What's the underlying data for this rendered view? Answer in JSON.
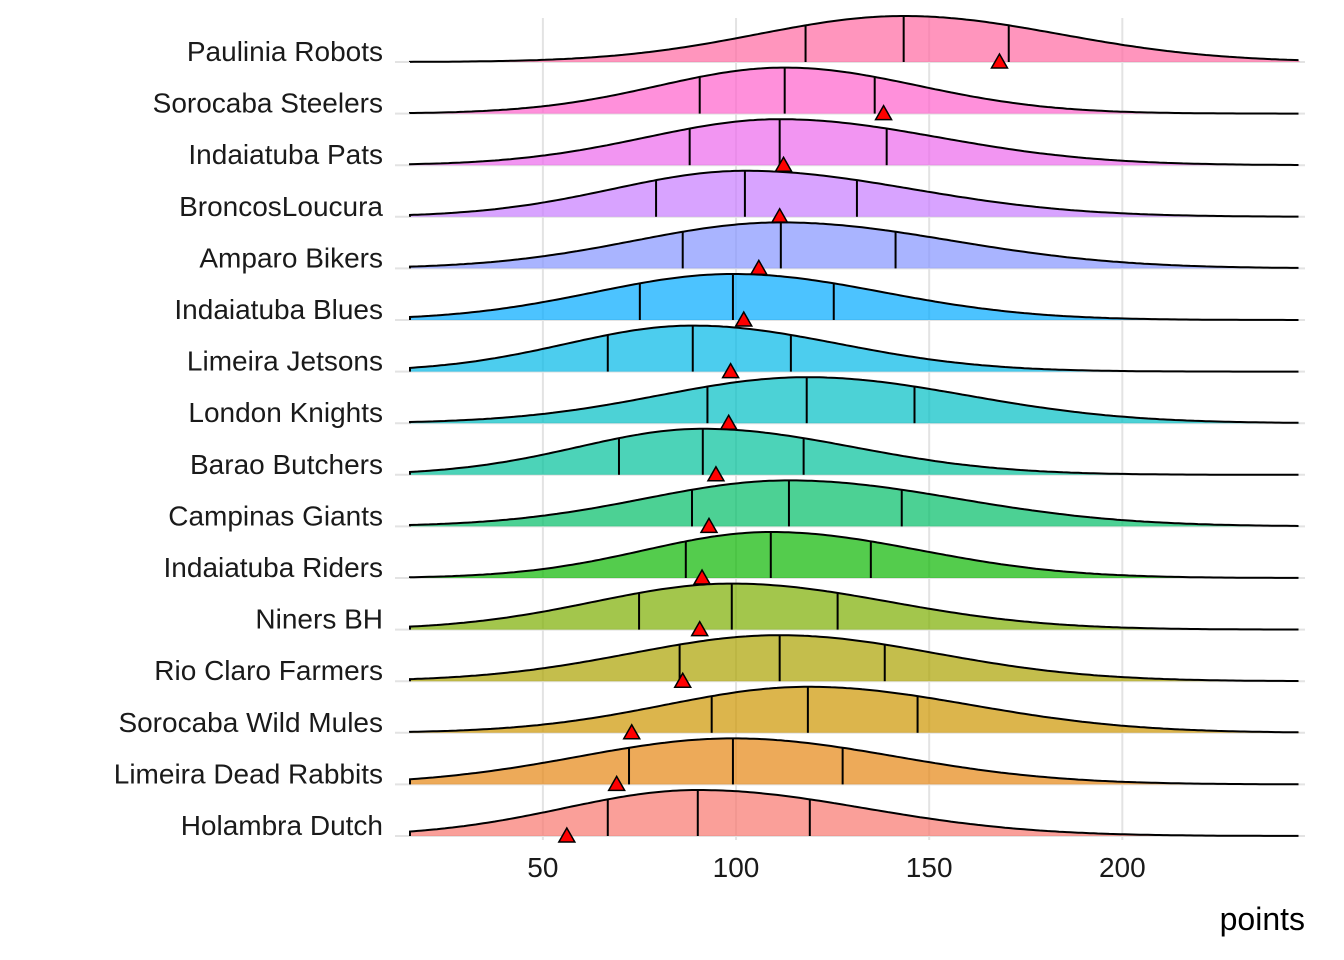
{
  "chart_data": {
    "type": "ridgeline",
    "title": "",
    "xlabel": "points",
    "ylabel": "",
    "xlim": [
      15.6,
      246
    ],
    "x_ticks": [
      50,
      100,
      150,
      200
    ],
    "grid": "vertical major",
    "legend": "none",
    "marker_description": "red triangle per team",
    "teams": [
      {
        "name": "Paulinia Robots",
        "q1": 118,
        "median": 143.4,
        "q3": 170.6,
        "marker": 168.2,
        "color": "#FF68A1"
      },
      {
        "name": "Sorocaba Steelers",
        "q1": 90.6,
        "median": 112.6,
        "q3": 135.9,
        "marker": 138.2,
        "color": "#FF61CC"
      },
      {
        "name": "Indaiatuba Pats",
        "q1": 88,
        "median": 111.3,
        "q3": 139,
        "marker": 112.3,
        "color": "#ED68ED"
      },
      {
        "name": "BroncosLoucura",
        "q1": 79.3,
        "median": 102.3,
        "q3": 131.3,
        "marker": 111.3,
        "color": "#C77CFF"
      },
      {
        "name": "Amparo Bikers",
        "q1": 86.2,
        "median": 111.6,
        "q3": 141.3,
        "marker": 105.9,
        "color": "#8494FF"
      },
      {
        "name": "Indaiatuba Blues",
        "q1": 75.1,
        "median": 99.2,
        "q3": 125.3,
        "marker": 102,
        "color": "#00A9FF"
      },
      {
        "name": "Limeira Jetsons",
        "q1": 66.8,
        "median": 88.8,
        "q3": 114.2,
        "marker": 98.6,
        "color": "#00B8E7"
      },
      {
        "name": "London Knights",
        "q1": 92.6,
        "median": 118.3,
        "q3": 146.2,
        "marker": 98.1,
        "color": "#00BFC4"
      },
      {
        "name": "Barao Butchers",
        "q1": 69.7,
        "median": 91.4,
        "q3": 117.5,
        "marker": 94.8,
        "color": "#00C19A"
      },
      {
        "name": "Campinas Giants",
        "q1": 88.6,
        "median": 113.7,
        "q3": 142.9,
        "marker": 93,
        "color": "#00BE67"
      },
      {
        "name": "Indaiatuba Riders",
        "q1": 87,
        "median": 109,
        "q3": 134.9,
        "marker": 91.2,
        "color": "#0CB702"
      },
      {
        "name": "Niners BH",
        "q1": 74.9,
        "median": 98.9,
        "q3": 126.3,
        "marker": 90.6,
        "color": "#7CAE00"
      },
      {
        "name": "Rio Claro Farmers",
        "q1": 85.4,
        "median": 111.3,
        "q3": 138.5,
        "marker": 86.2,
        "color": "#ABA300"
      },
      {
        "name": "Sorocaba Wild Mules",
        "q1": 93.7,
        "median": 118.6,
        "q3": 147,
        "marker": 73,
        "color": "#CD9600"
      },
      {
        "name": "Limeira Dead Rabbits",
        "q1": 72.3,
        "median": 99.2,
        "q3": 127.6,
        "marker": 69.1,
        "color": "#E68613"
      },
      {
        "name": "Holambra Dutch",
        "q1": 66.8,
        "median": 90.1,
        "q3": 119.1,
        "marker": 56.2,
        "color": "#F8766D"
      }
    ]
  }
}
